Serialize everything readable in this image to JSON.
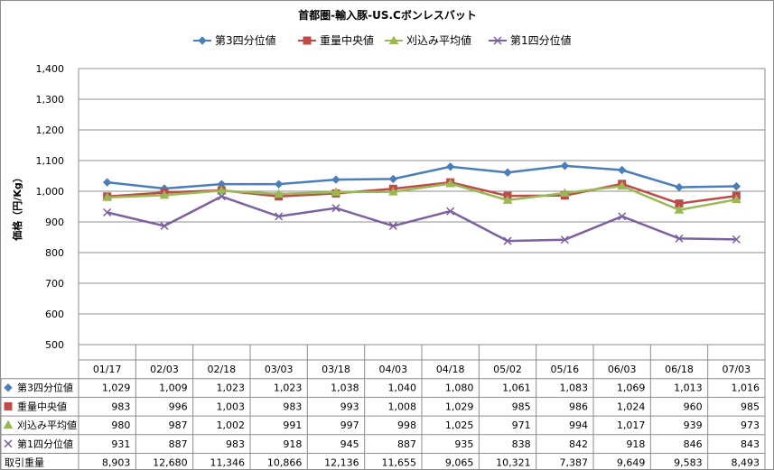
{
  "chart_data": {
    "type": "line",
    "title": "首都圏-輸入豚-US.Cボンレスバット",
    "ylabel": "価格（円/Kg）",
    "ylim": [
      500,
      1400
    ],
    "ytick_step": 100,
    "categories": [
      "01/17",
      "02/03",
      "02/18",
      "03/03",
      "03/18",
      "04/03",
      "04/18",
      "05/02",
      "05/16",
      "06/03",
      "06/18",
      "07/03"
    ],
    "series": [
      {
        "name": "第3四分位値",
        "color": "#4a7ebb",
        "marker": "diamond",
        "values": [
          1029,
          1009,
          1023,
          1023,
          1038,
          1040,
          1080,
          1061,
          1083,
          1069,
          1013,
          1016
        ]
      },
      {
        "name": "重量中央値",
        "color": "#be4b48",
        "marker": "square",
        "values": [
          983,
          996,
          1003,
          983,
          993,
          1008,
          1029,
          985,
          986,
          1024,
          960,
          985
        ]
      },
      {
        "name": "刈込み平均値",
        "color": "#98b954",
        "marker": "triangle",
        "values": [
          980,
          987,
          1002,
          991,
          997,
          998,
          1025,
          971,
          994,
          1017,
          939,
          973
        ]
      },
      {
        "name": "第1四分位値",
        "color": "#7d60a0",
        "marker": "x",
        "values": [
          931,
          887,
          983,
          918,
          945,
          887,
          935,
          838,
          842,
          918,
          846,
          843
        ]
      }
    ],
    "table_extra_row": {
      "name": "取引重量",
      "values": [
        8903,
        12680,
        11346,
        10866,
        12136,
        11655,
        9065,
        10321,
        7387,
        9649,
        9583,
        8493
      ]
    },
    "legend": "top",
    "grid": true
  }
}
